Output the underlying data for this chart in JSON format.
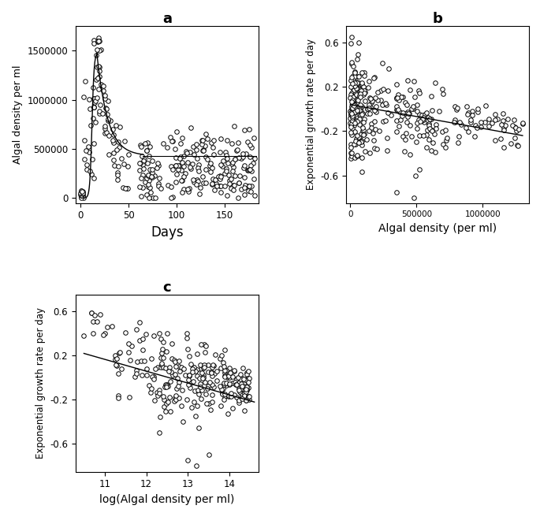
{
  "panel_a": {
    "title": "a",
    "xlabel": "Days",
    "ylabel": "Algal density per ml",
    "xlim": [
      -5,
      185
    ],
    "ylim": [
      -50000,
      1750000
    ],
    "xticks": [
      0,
      50,
      100,
      150
    ],
    "yticks": [
      0,
      500000,
      1000000,
      1500000
    ],
    "ytick_labels": [
      "0",
      "500000",
      "1000000",
      "1500000"
    ],
    "curve_peak_x": 17,
    "curve_peak_y": 1480000,
    "curve_plateau_y": 430000,
    "horizontal_line_y": 430000,
    "horizontal_line_start": 65
  },
  "panel_b": {
    "title": "b",
    "xlabel": "Algal density (per ml)",
    "ylabel": "Exponential growth rate per day",
    "xlim": [
      -30000,
      1350000
    ],
    "ylim": [
      -0.85,
      0.75
    ],
    "xticks": [
      0,
      500000,
      1000000
    ],
    "yticks": [
      -0.6,
      -0.2,
      0.2,
      0.6
    ],
    "line_x0": 0,
    "line_x1": 1300000,
    "line_y0": 0.04,
    "line_y1": -0.24
  },
  "panel_c": {
    "title": "c",
    "xlabel": "log(Algal density per ml)",
    "ylabel": "Exponential growth rate per day",
    "xlim": [
      10.3,
      14.7
    ],
    "ylim": [
      -0.85,
      0.75
    ],
    "xticks": [
      11,
      12,
      13,
      14
    ],
    "yticks": [
      -0.6,
      -0.2,
      0.2,
      0.6
    ],
    "line_x0": 10.5,
    "line_x1": 14.6,
    "line_y0": 0.22,
    "line_y1": -0.22
  },
  "marker_size": 4,
  "random_seed": 42
}
